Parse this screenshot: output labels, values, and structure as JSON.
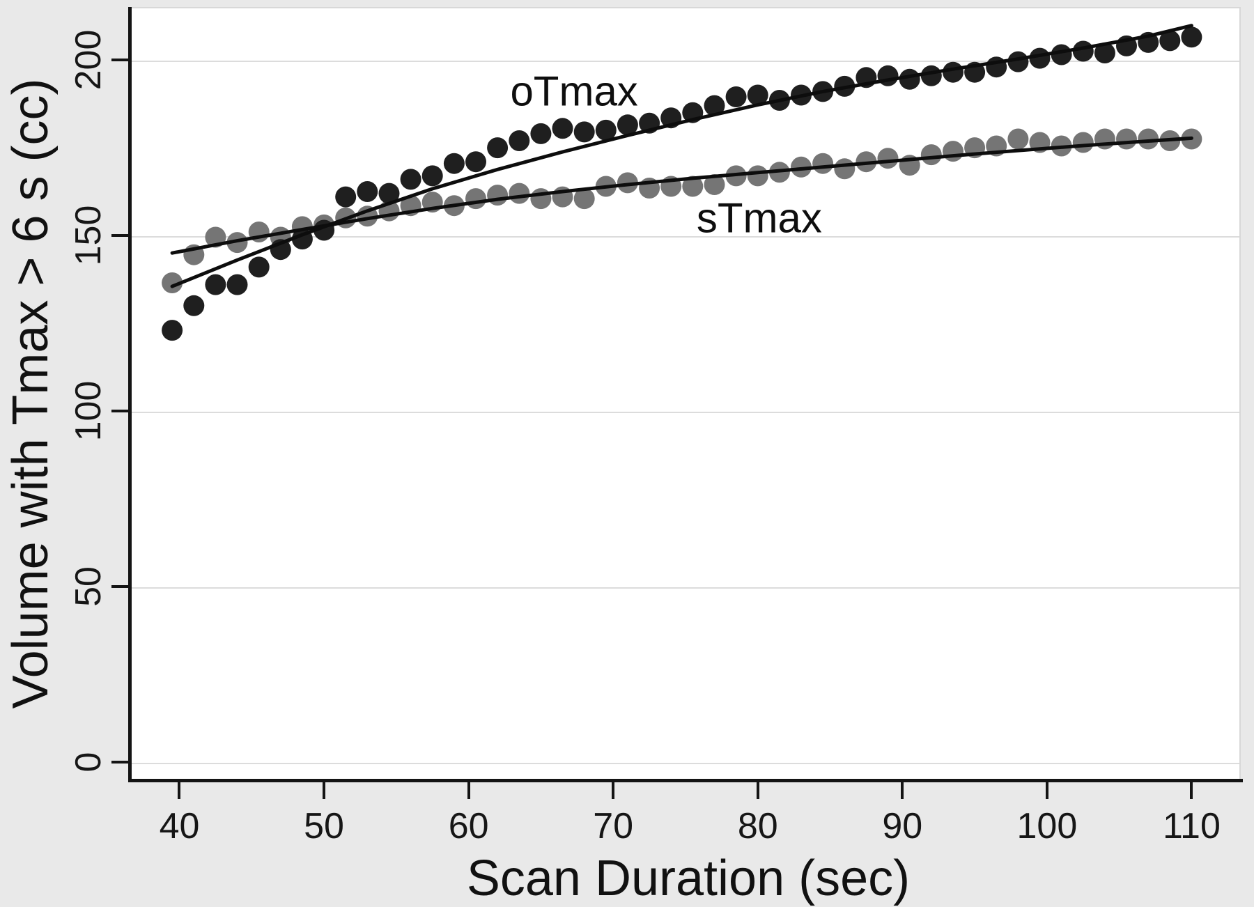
{
  "figure": {
    "background_color": "#e9e9e9",
    "plot_background": "#ffffff",
    "grid_color": "#dcdcdc",
    "axis_color": "#141414",
    "otmax_color": "#1f1f1f",
    "stmax_color": "#757575",
    "fit_line_color": "#0d0d0d"
  },
  "chart_data": {
    "type": "scatter",
    "title": "",
    "xlabel": "Scan Duration (sec)",
    "ylabel": "Volume with Tmax > 6 s (cc)",
    "x_ticks": [
      40,
      50,
      60,
      70,
      80,
      90,
      100,
      110
    ],
    "y_ticks": [
      0,
      50,
      100,
      150,
      200
    ],
    "xlim": [
      36.7,
      113.4
    ],
    "ylim": [
      -4.8,
      215.1
    ],
    "grid": "horizontal",
    "legend_position": "inline-annotations",
    "x": [
      39.5,
      41,
      42.5,
      44,
      45.5,
      47,
      48.5,
      50,
      51.5,
      53,
      54.5,
      56,
      57.5,
      59,
      60.5,
      62,
      63.5,
      65,
      66.5,
      68,
      69.5,
      71,
      72.5,
      74,
      75.5,
      77,
      78.5,
      80,
      81.5,
      83,
      84.5,
      86,
      87.5,
      89,
      90.5,
      92,
      93.5,
      95,
      96.5,
      98,
      99.5,
      101,
      102.5,
      104,
      105.5,
      107,
      108.5,
      110
    ],
    "series": [
      {
        "name": "sTmax",
        "color": "#757575",
        "marker_radius": 15,
        "values": [
          136.5,
          144.5,
          149.5,
          148,
          151,
          149.5,
          152.5,
          153,
          155,
          155.5,
          157,
          158.5,
          159.5,
          158.5,
          160.5,
          161.5,
          162,
          160.5,
          161,
          160.5,
          164,
          165,
          163.5,
          164,
          164,
          164.5,
          167,
          167,
          168,
          169.5,
          170.5,
          169,
          171,
          172,
          170,
          173,
          174,
          175,
          175.5,
          177.5,
          176.5,
          175.5,
          176.5,
          177.5,
          177.5,
          177.5,
          177,
          177.5
        ]
      },
      {
        "name": "oTmax",
        "color": "#1f1f1f",
        "marker_radius": 15,
        "values": [
          123,
          130,
          136,
          136,
          141,
          146,
          149,
          151.5,
          161,
          162.5,
          162,
          166,
          167,
          170.5,
          171,
          175,
          177,
          179,
          180.5,
          179.5,
          180,
          181.5,
          182,
          183.5,
          185,
          187,
          189.5,
          190,
          188.5,
          190,
          191,
          192.5,
          195,
          195.5,
          194.5,
          195.5,
          196.5,
          196.5,
          198,
          199.5,
          200.5,
          201.5,
          202.5,
          202,
          204,
          205,
          205.5,
          206.5
        ]
      }
    ],
    "fit_lines": [
      {
        "series": "sTmax",
        "color": "#0d0d0d",
        "stroke_width": 5,
        "points": [
          [
            39.5,
            145
          ],
          [
            44,
            148.5
          ],
          [
            48.5,
            151.7
          ],
          [
            53,
            154.8
          ],
          [
            57.5,
            157.7
          ],
          [
            62,
            160.3
          ],
          [
            66.5,
            162.5
          ],
          [
            71,
            164.5
          ],
          [
            75.5,
            166.3
          ],
          [
            80,
            167.9
          ],
          [
            84.5,
            169.5
          ],
          [
            89,
            171.1
          ],
          [
            93.5,
            172.7
          ],
          [
            98,
            174.2
          ],
          [
            102.5,
            175.6
          ],
          [
            107,
            176.9
          ],
          [
            110,
            177.7
          ]
        ]
      },
      {
        "series": "oTmax",
        "color": "#0d0d0d",
        "stroke_width": 5,
        "points": [
          [
            39.5,
            135.5
          ],
          [
            44,
            143
          ],
          [
            48.5,
            150.2
          ],
          [
            53,
            157
          ],
          [
            57.5,
            163.3
          ],
          [
            62,
            168.8
          ],
          [
            66.5,
            173.8
          ],
          [
            71,
            178.5
          ],
          [
            75.5,
            183
          ],
          [
            80,
            187.2
          ],
          [
            84.5,
            191
          ],
          [
            89,
            194.3
          ],
          [
            93.5,
            197.4
          ],
          [
            98,
            200.3
          ],
          [
            102.5,
            203.4
          ],
          [
            107,
            206.8
          ],
          [
            110,
            209.8
          ]
        ]
      }
    ],
    "annotations": [
      {
        "text": "oTmax",
        "x": 67.3,
        "y": 191
      },
      {
        "text": "sTmax",
        "x": 80.1,
        "y": 155
      }
    ]
  }
}
